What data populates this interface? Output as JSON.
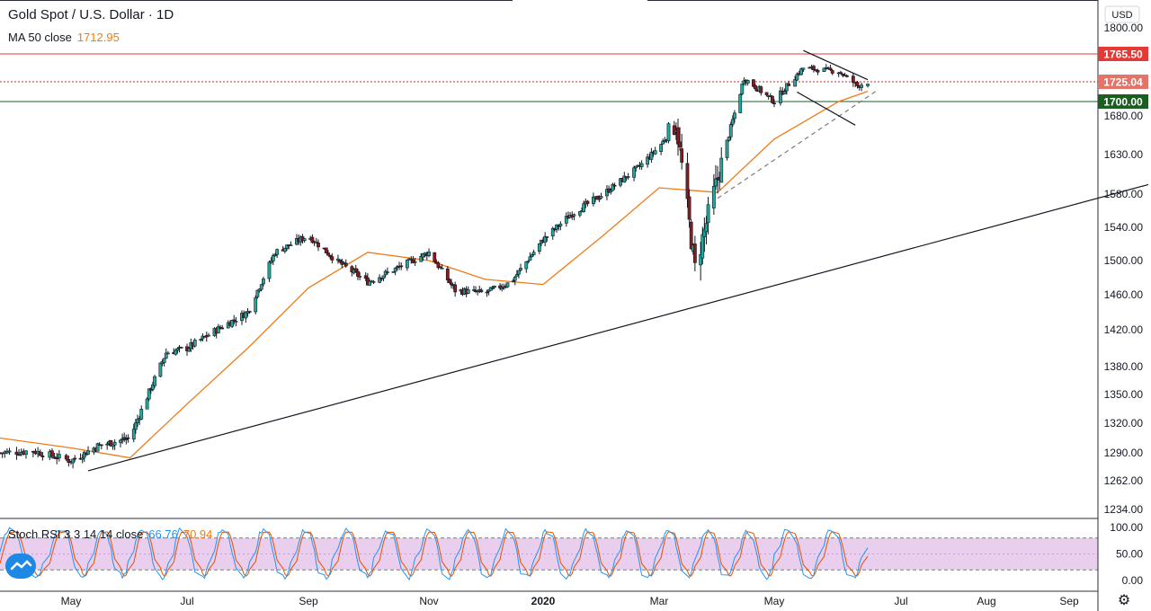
{
  "header": {
    "symbol": "Gold Spot / U.S. Dollar · 1D",
    "ma_label": "MA 50 close",
    "ma_value": "1712.95"
  },
  "indicator": {
    "label": "Stoch RSI 3 3 14 14 close",
    "k_value": "66.76",
    "d_value": "70.94"
  },
  "currency": "USD",
  "colors": {
    "up": "#26a69a",
    "down": "#8b1a1a",
    "ma": "#ef7b16",
    "k": "#2196f3",
    "d": "#e65100",
    "band": "#e1bee7",
    "resistance": "#e53935",
    "support": "#1b5e20",
    "price_badge": "#e57368"
  },
  "chart_data": {
    "type": "candlestick",
    "x_tick_labels": [
      "May",
      "Jul",
      "Sep",
      "Nov",
      "2020",
      "Mar",
      "May",
      "Jul",
      "Aug",
      "Sep"
    ],
    "price_axis_ticks": [
      1800,
      1680,
      1630,
      1580,
      1540,
      1500,
      1460,
      1420,
      1380,
      1350,
      1320,
      1290,
      1262,
      1234
    ],
    "stoch_axis_ticks": [
      "100.00",
      "50.00",
      "0.00"
    ],
    "stoch_band": [
      20,
      80
    ],
    "horizontal_levels": [
      {
        "label": "1765.50",
        "value": 1765.5,
        "style": "resistance"
      },
      {
        "label": "1725.04",
        "value": 1725.04,
        "style": "last_price"
      },
      {
        "label": "1700.00",
        "value": 1700,
        "style": "support"
      }
    ],
    "price_anchors": [
      [
        "2019-04-01",
        1290
      ],
      [
        "2019-04-15",
        1292
      ],
      [
        "2019-05-01",
        1282
      ],
      [
        "2019-05-15",
        1297
      ],
      [
        "2019-06-01",
        1305
      ],
      [
        "2019-06-20",
        1395
      ],
      [
        "2019-07-01",
        1400
      ],
      [
        "2019-07-20",
        1425
      ],
      [
        "2019-08-01",
        1440
      ],
      [
        "2019-08-15",
        1510
      ],
      [
        "2019-09-01",
        1530
      ],
      [
        "2019-09-15",
        1500
      ],
      [
        "2019-10-01",
        1475
      ],
      [
        "2019-10-15",
        1490
      ],
      [
        "2019-11-01",
        1510
      ],
      [
        "2019-11-15",
        1465
      ],
      [
        "2019-12-01",
        1462
      ],
      [
        "2019-12-15",
        1475
      ],
      [
        "2020-01-01",
        1525
      ],
      [
        "2020-01-15",
        1555
      ],
      [
        "2020-02-01",
        1580
      ],
      [
        "2020-02-20",
        1615
      ],
      [
        "2020-03-01",
        1640
      ],
      [
        "2020-03-10",
        1670
      ],
      [
        "2020-03-20",
        1490
      ],
      [
        "2020-04-01",
        1600
      ],
      [
        "2020-04-15",
        1730
      ],
      [
        "2020-05-01",
        1700
      ],
      [
        "2020-05-15",
        1745
      ],
      [
        "2020-06-01",
        1740
      ],
      [
        "2020-06-10",
        1720
      ],
      [
        "2020-06-15",
        1725
      ]
    ],
    "ma50_anchors": [
      [
        "2019-04-01",
        1305
      ],
      [
        "2019-05-01",
        1295
      ],
      [
        "2019-06-01",
        1285
      ],
      [
        "2019-07-01",
        1340
      ],
      [
        "2019-08-01",
        1400
      ],
      [
        "2019-09-01",
        1468
      ],
      [
        "2019-10-01",
        1510
      ],
      [
        "2019-11-01",
        1500
      ],
      [
        "2019-12-01",
        1478
      ],
      [
        "2020-01-01",
        1472
      ],
      [
        "2020-02-01",
        1530
      ],
      [
        "2020-03-01",
        1588
      ],
      [
        "2020-04-01",
        1582
      ],
      [
        "2020-05-01",
        1650
      ],
      [
        "2020-06-01",
        1700
      ],
      [
        "2020-06-15",
        1712.95
      ]
    ],
    "trendlines": [
      {
        "from": [
          "2019-05-10",
          1272
        ],
        "to": [
          "2020-09-30",
          1592
        ],
        "style": "solid"
      },
      {
        "from": [
          "2020-04-01",
          1575
        ],
        "to": [
          "2020-06-20",
          1715
        ],
        "style": "dashed"
      },
      {
        "from": [
          "2020-05-15",
          1770
        ],
        "to": [
          "2020-06-15",
          1728
        ],
        "style": "solid"
      },
      {
        "from": [
          "2020-05-12",
          1712
        ],
        "to": [
          "2020-06-09",
          1668
        ],
        "style": "solid"
      }
    ]
  }
}
